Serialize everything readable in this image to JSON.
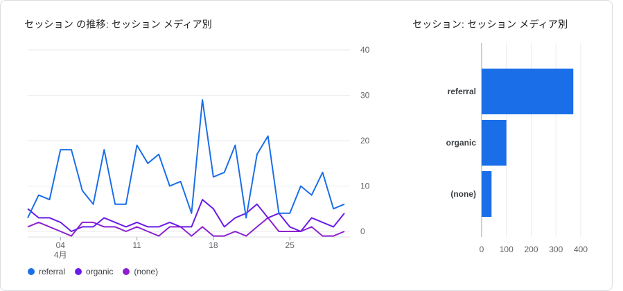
{
  "line_title": "セッション の推移: セッション メディア別",
  "bar_title": "セッション: セッション メディア別",
  "colors": {
    "referral": "#1a6fe8",
    "organic": "#6a1be8",
    "none": "#8e1fd0",
    "grid": "#e8eaed",
    "tick": "#5f6368"
  },
  "chart_data": [
    {
      "type": "line",
      "x_ticks": [
        "04",
        "11",
        "18",
        "25"
      ],
      "x_sublabel": "4月",
      "y_ticks": [
        "0",
        "10",
        "20",
        "30",
        "40"
      ],
      "ylim": [
        0,
        40
      ],
      "legend_position": "bottom-left",
      "series": [
        {
          "name": "referral",
          "values": [
            3,
            8,
            7,
            18,
            18,
            9,
            6,
            18,
            6,
            6,
            19,
            15,
            17,
            10,
            11,
            4,
            29,
            12,
            13,
            19,
            3,
            17,
            21,
            4,
            4,
            10,
            8,
            13,
            5,
            6
          ]
        },
        {
          "name": "organic",
          "values": [
            5,
            3,
            3,
            2,
            0,
            1,
            1,
            3,
            2,
            1,
            2,
            1,
            1,
            2,
            1,
            1,
            7,
            5,
            1,
            3,
            4,
            6,
            3,
            4,
            1,
            0,
            3,
            2,
            1,
            4
          ]
        },
        {
          "name": "(none)",
          "values": [
            1,
            2,
            1,
            0,
            -1,
            2,
            2,
            1,
            1,
            0,
            1,
            0,
            -1,
            1,
            1,
            -1,
            1,
            -1,
            -1,
            0,
            -1,
            1,
            3,
            0,
            0,
            0,
            1,
            -1,
            -1,
            0
          ]
        }
      ]
    },
    {
      "type": "bar",
      "orientation": "horizontal",
      "categories": [
        "referral",
        "organic",
        "(none)"
      ],
      "values": [
        370,
        100,
        40
      ],
      "x_ticks": [
        "0",
        "100",
        "200",
        "300",
        "400"
      ],
      "xlim": [
        0,
        400
      ],
      "grid": true
    }
  ]
}
